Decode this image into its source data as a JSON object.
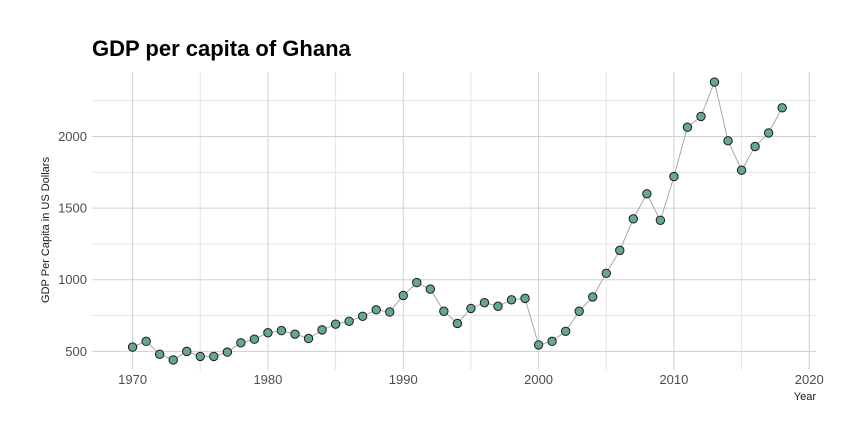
{
  "chart_data": {
    "type": "scatter",
    "title": "GDP per capita of Ghana",
    "xlabel": "Year",
    "ylabel": "GDP Per Capita in US Dollars",
    "xlim": [
      1967,
      2020.5
    ],
    "ylim": [
      370,
      2450
    ],
    "x_ticks": [
      1970,
      1980,
      1990,
      2000,
      2010,
      2020
    ],
    "y_ticks": [
      500,
      1000,
      1500,
      2000
    ],
    "grid": true,
    "legend": "none",
    "point_color": "#66a88f",
    "line_color": "#a8a8a8",
    "points": [
      {
        "x": 1970,
        "y": 530
      },
      {
        "x": 1971,
        "y": 570
      },
      {
        "x": 1972,
        "y": 480
      },
      {
        "x": 1973,
        "y": 440
      },
      {
        "x": 1974,
        "y": 500
      },
      {
        "x": 1975,
        "y": 465
      },
      {
        "x": 1976,
        "y": 465
      },
      {
        "x": 1977,
        "y": 495
      },
      {
        "x": 1978,
        "y": 560
      },
      {
        "x": 1979,
        "y": 585
      },
      {
        "x": 1980,
        "y": 630
      },
      {
        "x": 1981,
        "y": 645
      },
      {
        "x": 1982,
        "y": 620
      },
      {
        "x": 1983,
        "y": 590
      },
      {
        "x": 1984,
        "y": 650
      },
      {
        "x": 1985,
        "y": 690
      },
      {
        "x": 1986,
        "y": 710
      },
      {
        "x": 1987,
        "y": 745
      },
      {
        "x": 1988,
        "y": 790
      },
      {
        "x": 1989,
        "y": 775
      },
      {
        "x": 1990,
        "y": 890
      },
      {
        "x": 1991,
        "y": 980
      },
      {
        "x": 1992,
        "y": 935
      },
      {
        "x": 1993,
        "y": 780
      },
      {
        "x": 1994,
        "y": 695
      },
      {
        "x": 1995,
        "y": 800
      },
      {
        "x": 1996,
        "y": 840
      },
      {
        "x": 1997,
        "y": 815
      },
      {
        "x": 1998,
        "y": 860
      },
      {
        "x": 1999,
        "y": 870
      },
      {
        "x": 2000,
        "y": 545
      },
      {
        "x": 2001,
        "y": 570
      },
      {
        "x": 2002,
        "y": 640
      },
      {
        "x": 2003,
        "y": 780
      },
      {
        "x": 2004,
        "y": 880
      },
      {
        "x": 2005,
        "y": 1045
      },
      {
        "x": 2006,
        "y": 1205
      },
      {
        "x": 2007,
        "y": 1425
      },
      {
        "x": 2008,
        "y": 1600
      },
      {
        "x": 2009,
        "y": 1415
      },
      {
        "x": 2010,
        "y": 1720
      },
      {
        "x": 2011,
        "y": 2065
      },
      {
        "x": 2012,
        "y": 2140
      },
      {
        "x": 2013,
        "y": 2380
      },
      {
        "x": 2014,
        "y": 1970
      },
      {
        "x": 2015,
        "y": 1765
      },
      {
        "x": 2016,
        "y": 1930
      },
      {
        "x": 2017,
        "y": 2025
      },
      {
        "x": 2018,
        "y": 2200
      }
    ]
  }
}
